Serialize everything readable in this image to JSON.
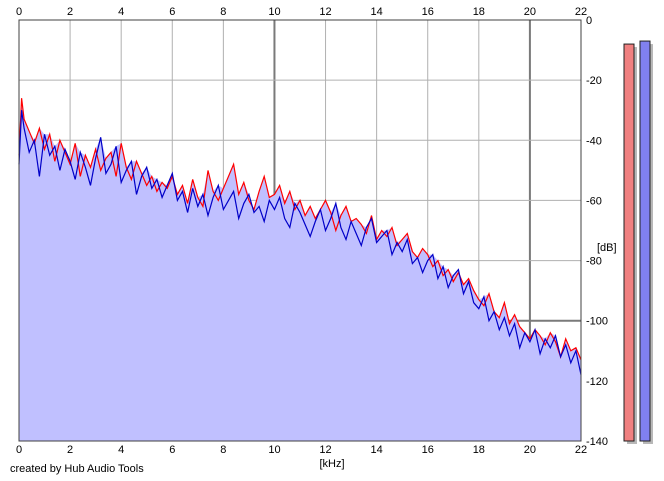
{
  "footer": "created by Hub Audio Tools",
  "colors": {
    "background": "#ffffff",
    "plot_background": "#ffffff",
    "fill": "#c0c0ff",
    "left_channel": "#ff0000",
    "right_channel": "#0000c8",
    "grid": "#b0b0b0",
    "grid_major": "#7a7a7a",
    "meter_left": "#f08080",
    "meter_right": "#8080f0"
  },
  "chart_data": {
    "type": "line",
    "xlabel": "[kHz]",
    "ylabel": "[dB]",
    "xlim": [
      0,
      22
    ],
    "ylim": [
      -140,
      0
    ],
    "x_ticks": [
      "0",
      "2",
      "4",
      "6",
      "8",
      "10",
      "12",
      "14",
      "16",
      "18",
      "20",
      "22"
    ],
    "y_ticks": [
      "0",
      "-20",
      "-40",
      "-60",
      "-80",
      "-100",
      "-120",
      "-140"
    ],
    "grid": true,
    "series": [
      {
        "color": "#ff0000",
        "x": [
          0,
          0.1,
          0.2,
          0.4,
          0.6,
          0.8,
          1.0,
          1.2,
          1.4,
          1.6,
          1.8,
          2.0,
          2.2,
          2.4,
          2.6,
          2.8,
          3.0,
          3.2,
          3.4,
          3.6,
          3.8,
          4.0,
          4.2,
          4.4,
          4.6,
          4.8,
          5.0,
          5.2,
          5.4,
          5.6,
          5.8,
          6.0,
          6.2,
          6.4,
          6.6,
          6.8,
          7.0,
          7.2,
          7.4,
          7.6,
          7.8,
          8.0,
          8.2,
          8.4,
          8.6,
          8.8,
          9.0,
          9.2,
          9.4,
          9.6,
          9.8,
          10.0,
          10.2,
          10.4,
          10.6,
          10.8,
          11.0,
          11.2,
          11.4,
          11.6,
          11.8,
          12.0,
          12.2,
          12.4,
          12.6,
          12.8,
          13.0,
          13.2,
          13.4,
          13.6,
          13.8,
          14.0,
          14.2,
          14.4,
          14.6,
          14.8,
          15.0,
          15.2,
          15.4,
          15.6,
          15.8,
          16.0,
          16.2,
          16.4,
          16.6,
          16.8,
          17.0,
          17.2,
          17.4,
          17.6,
          17.8,
          18.0,
          18.2,
          18.4,
          18.6,
          18.8,
          19.0,
          19.2,
          19.4,
          19.6,
          19.8,
          20.0,
          20.2,
          20.4,
          20.6,
          20.8,
          21.0,
          21.2,
          21.4,
          21.6,
          21.8,
          22.0
        ],
        "values": [
          -45,
          -26,
          -33,
          -37,
          -41,
          -36,
          -43,
          -38,
          -47,
          -40,
          -44,
          -48,
          -41,
          -52,
          -45,
          -49,
          -43,
          -50,
          -46,
          -44,
          -52,
          -41,
          -49,
          -53,
          -47,
          -51,
          -55,
          -52,
          -57,
          -54,
          -56,
          -52,
          -58,
          -55,
          -61,
          -53,
          -59,
          -62,
          -50,
          -57,
          -60,
          -56,
          -52,
          -48,
          -58,
          -54,
          -60,
          -63,
          -57,
          -52,
          -59,
          -58,
          -55,
          -61,
          -57,
          -63,
          -60,
          -65,
          -62,
          -66,
          -63,
          -60,
          -64,
          -70,
          -65,
          -62,
          -67,
          -66,
          -68,
          -71,
          -65,
          -73,
          -70,
          -72,
          -69,
          -75,
          -73,
          -71,
          -77,
          -79,
          -76,
          -78,
          -82,
          -80,
          -85,
          -83,
          -87,
          -84,
          -88,
          -86,
          -90,
          -93,
          -95,
          -91,
          -97,
          -99,
          -94,
          -101,
          -98,
          -102,
          -104,
          -106,
          -103,
          -105,
          -108,
          -104,
          -107,
          -112,
          -106,
          -110,
          -109,
          -113
        ]
      },
      {
        "color": "#0000c8",
        "x": [
          0,
          0.1,
          0.2,
          0.4,
          0.6,
          0.8,
          1.0,
          1.2,
          1.4,
          1.6,
          1.8,
          2.0,
          2.2,
          2.4,
          2.6,
          2.8,
          3.0,
          3.2,
          3.4,
          3.6,
          3.8,
          4.0,
          4.2,
          4.4,
          4.6,
          4.8,
          5.0,
          5.2,
          5.4,
          5.6,
          5.8,
          6.0,
          6.2,
          6.4,
          6.6,
          6.8,
          7.0,
          7.2,
          7.4,
          7.6,
          7.8,
          8.0,
          8.2,
          8.4,
          8.6,
          8.8,
          9.0,
          9.2,
          9.4,
          9.6,
          9.8,
          10.0,
          10.2,
          10.4,
          10.6,
          10.8,
          11.0,
          11.2,
          11.4,
          11.6,
          11.8,
          12.0,
          12.2,
          12.4,
          12.6,
          12.8,
          13.0,
          13.2,
          13.4,
          13.6,
          13.8,
          14.0,
          14.2,
          14.4,
          14.6,
          14.8,
          15.0,
          15.2,
          15.4,
          15.6,
          15.8,
          16.0,
          16.2,
          16.4,
          16.6,
          16.8,
          17.0,
          17.2,
          17.4,
          17.6,
          17.8,
          18.0,
          18.2,
          18.4,
          18.6,
          18.8,
          19.0,
          19.2,
          19.4,
          19.6,
          19.8,
          20.0,
          20.2,
          20.4,
          20.6,
          20.8,
          21.0,
          21.2,
          21.4,
          21.6,
          21.8,
          22.0
        ],
        "values": [
          -48,
          -30,
          -36,
          -44,
          -40,
          -52,
          -38,
          -45,
          -42,
          -50,
          -43,
          -47,
          -53,
          -44,
          -49,
          -55,
          -46,
          -39,
          -51,
          -48,
          -42,
          -54,
          -50,
          -47,
          -58,
          -52,
          -49,
          -56,
          -53,
          -59,
          -55,
          -51,
          -60,
          -57,
          -64,
          -56,
          -62,
          -58,
          -65,
          -59,
          -55,
          -63,
          -60,
          -57,
          -66,
          -61,
          -58,
          -64,
          -62,
          -67,
          -60,
          -63,
          -59,
          -66,
          -69,
          -61,
          -64,
          -68,
          -72,
          -67,
          -63,
          -70,
          -66,
          -61,
          -69,
          -73,
          -67,
          -71,
          -75,
          -69,
          -66,
          -74,
          -72,
          -70,
          -78,
          -74,
          -77,
          -73,
          -81,
          -79,
          -84,
          -80,
          -78,
          -86,
          -82,
          -89,
          -85,
          -83,
          -91,
          -87,
          -94,
          -96,
          -92,
          -100,
          -97,
          -103,
          -99,
          -105,
          -101,
          -109,
          -104,
          -107,
          -103,
          -111,
          -106,
          -109,
          -105,
          -112,
          -108,
          -114,
          -110,
          -118
        ]
      }
    ],
    "meters": [
      {
        "channel": "left",
        "color": "#f08080",
        "level_db": -8
      },
      {
        "channel": "right",
        "color": "#8080f0",
        "level_db": -7
      }
    ]
  }
}
